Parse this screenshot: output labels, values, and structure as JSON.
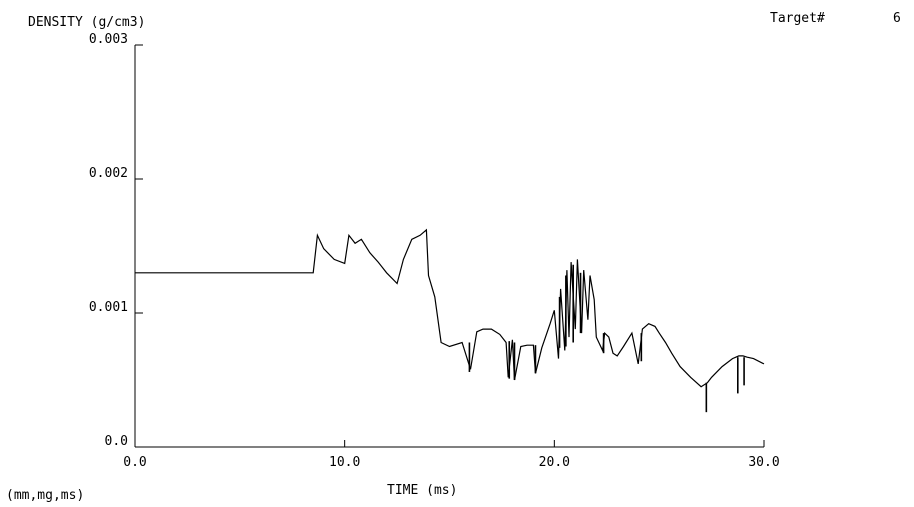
{
  "header": {
    "ylabel": "DENSITY (g/cm3)",
    "target_label": "Target#",
    "target_value": "6"
  },
  "footer": {
    "units": "(mm,mg,ms)"
  },
  "chart_data": {
    "type": "line",
    "title": "",
    "xlabel": "TIME (ms)",
    "ylabel": "DENSITY (g/cm3)",
    "xlim": [
      0,
      30
    ],
    "ylim": [
      0,
      0.003
    ],
    "x_ticks": [
      0,
      10,
      20,
      30
    ],
    "x_tick_labels": [
      "0.0",
      "10.0",
      "20.0",
      "30.0"
    ],
    "y_ticks": [
      0,
      0.001,
      0.002,
      0.003
    ],
    "y_tick_labels": [
      "0.0",
      "0.001",
      "0.002",
      "0.003"
    ],
    "grid": false,
    "legend": "none",
    "line_color": "#000000",
    "series": [
      {
        "x": [
          0,
          8.5,
          8.7,
          9.0,
          9.5,
          10.0,
          10.2,
          10.5,
          10.8,
          11.2,
          11.6,
          12.0,
          12.5,
          12.8,
          13.2,
          13.6,
          13.9,
          14.0,
          14.3,
          14.6,
          15.0,
          15.6,
          16.0,
          16.3,
          16.6,
          17.0,
          17.4,
          17.7,
          17.8,
          18.0,
          18.1,
          18.4,
          18.7,
          19.0,
          19.1,
          19.4,
          19.8,
          20.0,
          20.2,
          20.3,
          20.5,
          20.6,
          20.7,
          20.8,
          21.0,
          21.1,
          21.3,
          21.4,
          21.6,
          21.7,
          21.9,
          22.0,
          22.3,
          22.4,
          22.6,
          22.8,
          23.0,
          23.3,
          23.7,
          24.0,
          24.2,
          24.5,
          24.8,
          25.0,
          25.3,
          25.6,
          26.0,
          26.5,
          27.0,
          27.3,
          27.5,
          28.0,
          28.5,
          28.8,
          29.0,
          29.2,
          29.5,
          30.0
        ],
        "y": [
          0.0013,
          0.0013,
          0.00158,
          0.00148,
          0.0014,
          0.00137,
          0.00158,
          0.00152,
          0.00155,
          0.00145,
          0.00138,
          0.0013,
          0.00122,
          0.0014,
          0.00155,
          0.00158,
          0.00162,
          0.00128,
          0.00112,
          0.00078,
          0.00075,
          0.00078,
          0.00058,
          0.00086,
          0.00088,
          0.00088,
          0.00084,
          0.00078,
          0.00052,
          0.0008,
          0.0005,
          0.00075,
          0.00076,
          0.00076,
          0.00055,
          0.00074,
          0.00092,
          0.00102,
          0.00066,
          0.00118,
          0.00072,
          0.00132,
          0.00082,
          0.00138,
          0.00088,
          0.0014,
          0.00085,
          0.00132,
          0.00095,
          0.00128,
          0.0011,
          0.00082,
          0.00072,
          0.00085,
          0.00082,
          0.0007,
          0.00068,
          0.00075,
          0.00085,
          0.00062,
          0.00088,
          0.00092,
          0.0009,
          0.00085,
          0.00078,
          0.0007,
          0.0006,
          0.00052,
          0.00045,
          0.00048,
          0.00052,
          0.0006,
          0.00066,
          0.00068,
          0.00068,
          0.00067,
          0.00066,
          0.00062
        ]
      }
    ],
    "spikes": [
      {
        "x": 15.95,
        "from": 0.00078,
        "to": 0.00056
      },
      {
        "x": 17.85,
        "from": 0.00079,
        "to": 0.00051
      },
      {
        "x": 18.1,
        "from": 0.00078,
        "to": 0.0005
      },
      {
        "x": 19.1,
        "from": 0.00076,
        "to": 0.00055
      },
      {
        "x": 20.25,
        "from": 0.00074,
        "to": 0.00112
      },
      {
        "x": 20.55,
        "from": 0.00075,
        "to": 0.00128
      },
      {
        "x": 20.9,
        "from": 0.00078,
        "to": 0.00136
      },
      {
        "x": 21.25,
        "from": 0.00085,
        "to": 0.0013
      },
      {
        "x": 22.35,
        "from": 0.00085,
        "to": 0.0007
      },
      {
        "x": 24.15,
        "from": 0.00085,
        "to": 0.00064
      },
      {
        "x": 27.25,
        "from": 0.00048,
        "to": 0.00026
      },
      {
        "x": 28.75,
        "from": 0.00067,
        "to": 0.0004
      },
      {
        "x": 29.05,
        "from": 0.00067,
        "to": 0.00046
      }
    ]
  }
}
